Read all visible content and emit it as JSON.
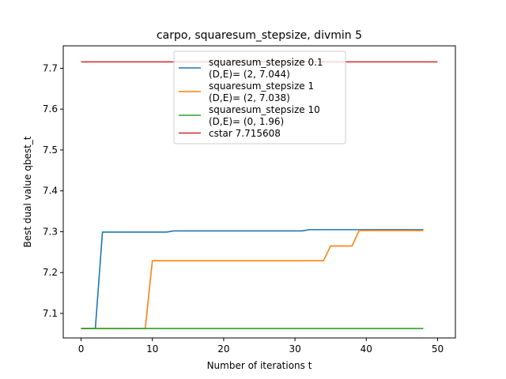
{
  "chart_data": {
    "type": "line",
    "title": "carpo, squaresum_stepsize, divmin 5",
    "xlabel": "Number of iterations t",
    "ylabel": "Best dual value qbest_t",
    "xlim": [
      -2.5,
      52.5
    ],
    "ylim": [
      7.04,
      7.755
    ],
    "xticks": [
      0,
      10,
      20,
      30,
      40,
      50
    ],
    "xtick_labels": [
      "0",
      "10",
      "20",
      "30",
      "40",
      "50"
    ],
    "yticks": [
      7.1,
      7.2,
      7.3,
      7.4,
      7.5,
      7.6,
      7.7
    ],
    "ytick_labels": [
      "7.1",
      "7.2",
      "7.3",
      "7.4",
      "7.5",
      "7.6",
      "7.7"
    ],
    "grid": false,
    "legend_position": "top-center",
    "series": [
      {
        "name": "squaresum_stepsize 0.1\n(D,E)= (2, 7.044)",
        "legend_lines": [
          "squaresum_stepsize 0.1",
          "(D,E)= (2, 7.044)"
        ],
        "color": "#1f77b4",
        "x": [
          0,
          2,
          3,
          12,
          13,
          31,
          32,
          48
        ],
        "y": [
          7.063,
          7.063,
          7.299,
          7.299,
          7.302,
          7.302,
          7.305,
          7.305
        ]
      },
      {
        "name": "squaresum_stepsize 1\n(D,E)= (2, 7.038)",
        "legend_lines": [
          "squaresum_stepsize 1",
          "(D,E)= (2, 7.038)"
        ],
        "color": "#ff7f0e",
        "x": [
          0,
          9,
          10,
          34,
          35,
          38,
          39,
          48
        ],
        "y": [
          7.063,
          7.063,
          7.229,
          7.229,
          7.265,
          7.265,
          7.303,
          7.303
        ]
      },
      {
        "name": "squaresum_stepsize 10\n(D,E)= (0, 1.96)",
        "legend_lines": [
          "squaresum_stepsize 10",
          "(D,E)= (0, 1.96)"
        ],
        "color": "#2ca02c",
        "x": [
          0,
          48
        ],
        "y": [
          7.063,
          7.063
        ]
      },
      {
        "name": "cstar 7.715608",
        "legend_lines": [
          "cstar 7.715608"
        ],
        "color": "#d62728",
        "x": [
          0,
          50
        ],
        "y": [
          7.715608,
          7.715608
        ]
      }
    ]
  }
}
